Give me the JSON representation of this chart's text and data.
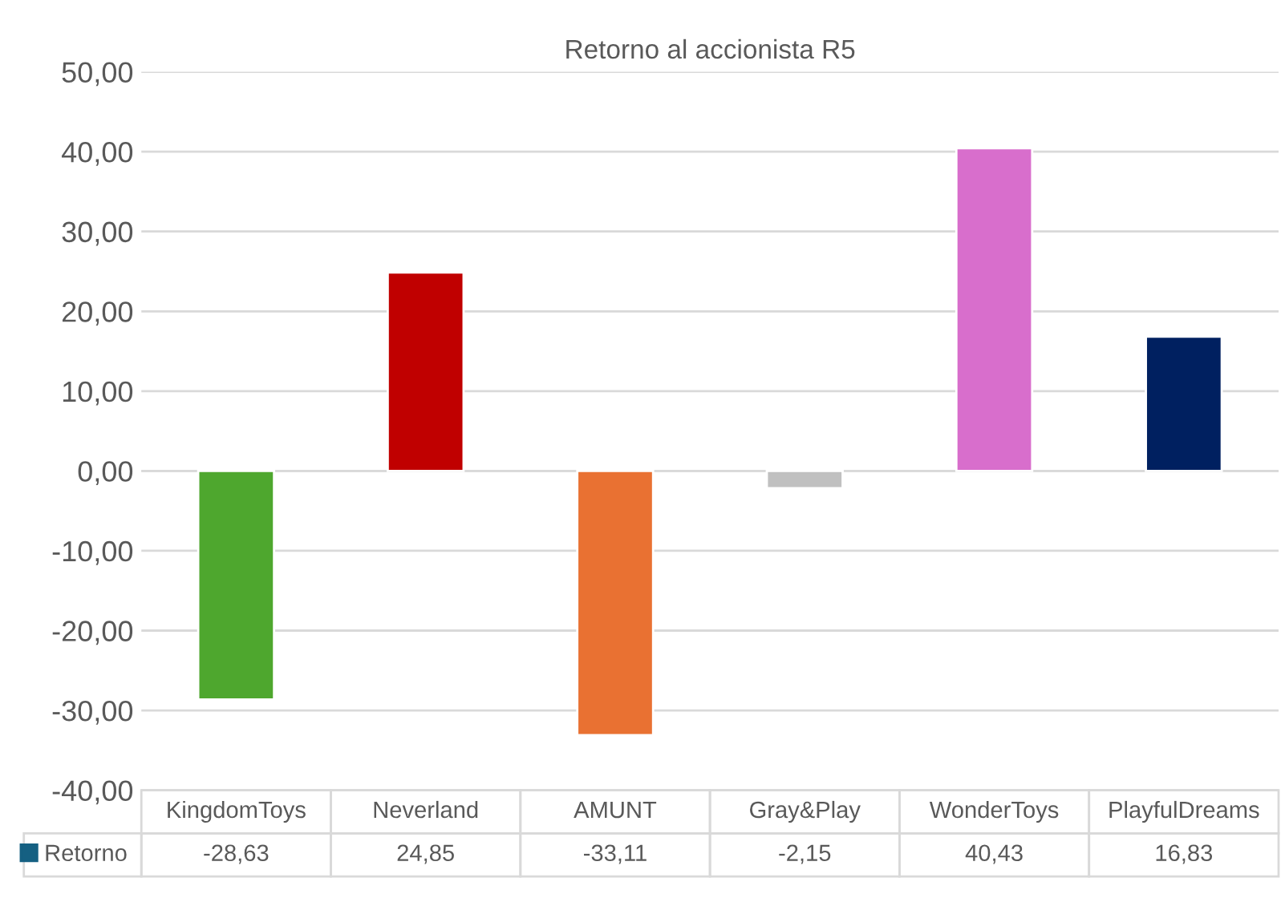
{
  "chart_data": {
    "type": "bar",
    "title": "Retorno al accionista R5",
    "categories": [
      "KingdomToys",
      "Neverland",
      "AMUNT",
      "Gray&Play",
      "WonderToys",
      "PlayfulDreams"
    ],
    "series": [
      {
        "name": "Retorno",
        "color": "#156082",
        "colors": [
          "#4ea72e",
          "#c00000",
          "#e97132",
          "#c0c0c0",
          "#d86ecc",
          "#002060"
        ],
        "values": [
          -28.63,
          24.85,
          -33.11,
          -2.15,
          40.43,
          16.83
        ],
        "value_labels": [
          "-28,63",
          "24,85",
          "-33,11",
          "-2,15",
          "40,43",
          "16,83"
        ]
      }
    ],
    "ylim": [
      -40,
      50
    ],
    "yticks": [
      {
        "value": -40,
        "label": "-40,00"
      },
      {
        "value": -30,
        "label": "-30,00"
      },
      {
        "value": -20,
        "label": "-20,00"
      },
      {
        "value": -10,
        "label": "-10,00"
      },
      {
        "value": 0,
        "label": "0,00"
      },
      {
        "value": 10,
        "label": "10,00"
      },
      {
        "value": 20,
        "label": "20,00"
      },
      {
        "value": 30,
        "label": "30,00"
      },
      {
        "value": 40,
        "label": "40,00"
      },
      {
        "value": 50,
        "label": "50,00"
      }
    ],
    "grid": "y",
    "legend": "bottom"
  }
}
